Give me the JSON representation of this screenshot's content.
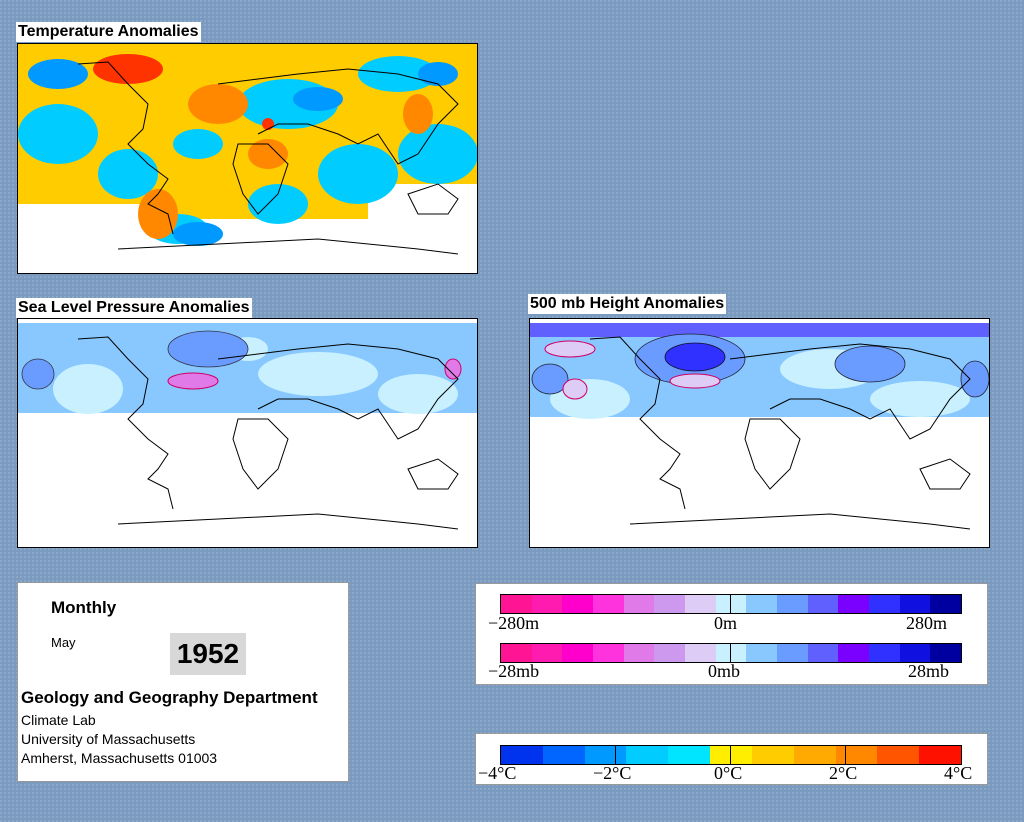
{
  "panels": {
    "temperature": {
      "title": "Temperature Anomalies"
    },
    "slp": {
      "title": "Sea Level Pressure Anomalies"
    },
    "height": {
      "title": "500 mb Height Anomalies"
    }
  },
  "info": {
    "period": "Monthly",
    "month": "May",
    "year": "1952",
    "department": "Geology and Geography Department",
    "lab": "Climate Lab",
    "university": "University of Massachusetts",
    "address": "Amherst, Massachusetts 01003"
  },
  "legend_height": {
    "labels": [
      "−280m",
      "0m",
      "280m"
    ],
    "colors": [
      "#ff1493",
      "#ff1ab0",
      "#ff00cc",
      "#ff33dd",
      "#e07ae8",
      "#cc99ee",
      "#ddccf5",
      "#c8f0ff",
      "#88c8ff",
      "#6a9cff",
      "#6060ff",
      "#7a00ff",
      "#3030ff",
      "#1010e0",
      "#0000a0"
    ]
  },
  "legend_slp": {
    "labels": [
      "−28mb",
      "0mb",
      "28mb"
    ],
    "colors": [
      "#ff1493",
      "#ff1ab0",
      "#ff00cc",
      "#ff33dd",
      "#e07ae8",
      "#cc99ee",
      "#ddccf5",
      "#c8f0ff",
      "#88c8ff",
      "#6a9cff",
      "#6060ff",
      "#7a00ff",
      "#3030ff",
      "#1010e0",
      "#0000a0"
    ]
  },
  "legend_temp": {
    "labels": [
      "−4°C",
      "−2°C",
      "0°C",
      "2°C",
      "4°C"
    ],
    "colors": [
      "#0033ee",
      "#0066ff",
      "#0099ff",
      "#00ccff",
      "#00e5ff",
      "#ffee00",
      "#ffcc00",
      "#ffaa00",
      "#ff8800",
      "#ff5500",
      "#ff1100"
    ]
  }
}
